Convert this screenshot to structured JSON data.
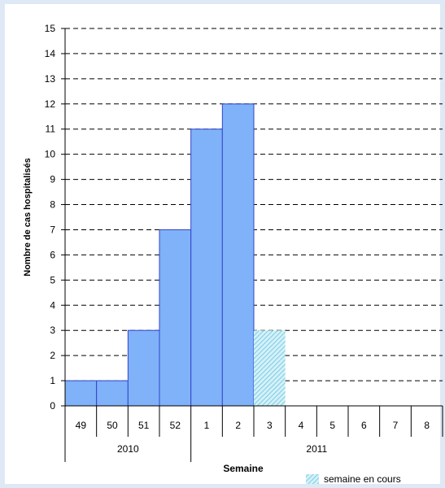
{
  "chart_data": {
    "type": "bar",
    "title": "",
    "xlabel": "Semaine",
    "ylabel": "Nombre de cas hospitalisés",
    "ylim": [
      0,
      15
    ],
    "yticks": [
      "0",
      "1",
      "2",
      "3",
      "4",
      "5",
      "6",
      "7",
      "8",
      "9",
      "10",
      "11",
      "12",
      "13",
      "14",
      "15"
    ],
    "grid": true,
    "categories": [
      "49",
      "50",
      "51",
      "52",
      "1",
      "2",
      "3",
      "4",
      "5",
      "6",
      "7",
      "8"
    ],
    "year_groups": [
      {
        "label": "2010",
        "span": 4
      },
      {
        "label": "2011",
        "span": 8
      }
    ],
    "series": [
      {
        "name": "",
        "values": [
          1,
          1,
          3,
          7,
          11,
          12,
          0,
          0,
          0,
          0,
          0,
          0
        ],
        "color": "#7fb2f8",
        "edge": "#3344cc"
      },
      {
        "name": "semaine en cours",
        "values": [
          0,
          0,
          0,
          0,
          0,
          0,
          3,
          0,
          0,
          0,
          0,
          0
        ],
        "color": "#9fdcee",
        "pattern": "hatched"
      }
    ],
    "legend": {
      "position": "bottom-right",
      "label": "semaine en cours"
    }
  }
}
